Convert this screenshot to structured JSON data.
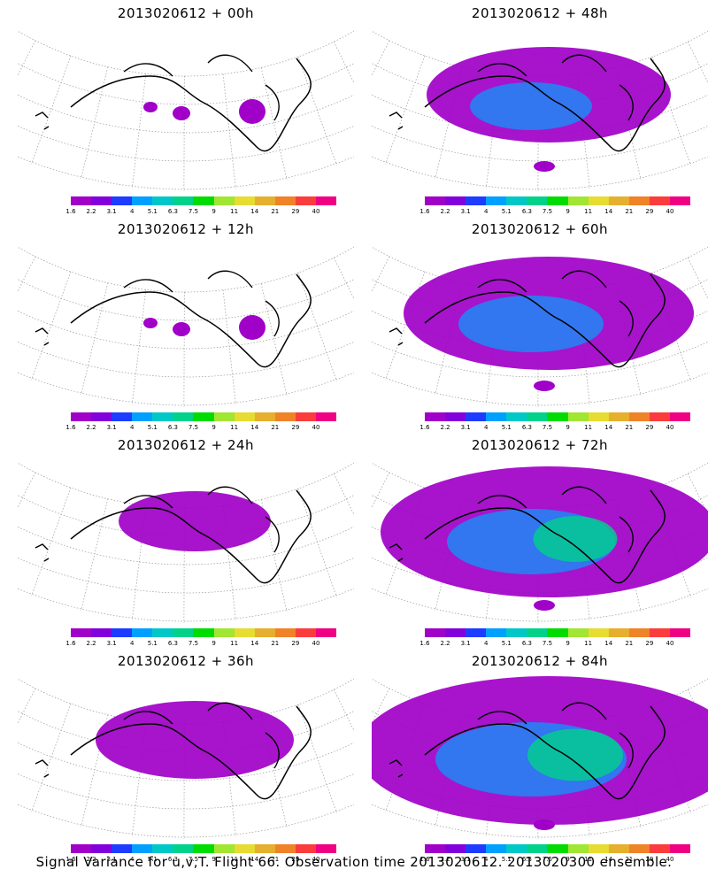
{
  "colors": [
    "#a000c8",
    "#8200dc",
    "#1e3cff",
    "#00a0ff",
    "#00c8c8",
    "#00d28c",
    "#00dc00",
    "#a0e632",
    "#e6dc32",
    "#e6af2d",
    "#f08228",
    "#fa3c3c",
    "#f00082"
  ],
  "tick_labels": [
    "1.6",
    "2.2",
    "3.1",
    "4",
    "5.1",
    "6.3",
    "7.5",
    "9",
    "11",
    "14",
    "21",
    "29",
    "40"
  ],
  "panels": [
    {
      "title": "2013020612  +  00h",
      "spread": 0
    },
    {
      "title": "2013020612  +  48h",
      "spread": 3
    },
    {
      "title": "2013020612  +  12h",
      "spread": 0
    },
    {
      "title": "2013020612  +  60h",
      "spread": 4
    },
    {
      "title": "2013020612  +  24h",
      "spread": 1
    },
    {
      "title": "2013020612  +  72h",
      "spread": 5
    },
    {
      "title": "2013020612  +  36h",
      "spread": 2
    },
    {
      "title": "2013020612  +  84h",
      "spread": 6
    }
  ],
  "caption": "Signal Variance for u,v,T. Flight 66. Observation time 2013020612. 2013020300 ensemble."
}
